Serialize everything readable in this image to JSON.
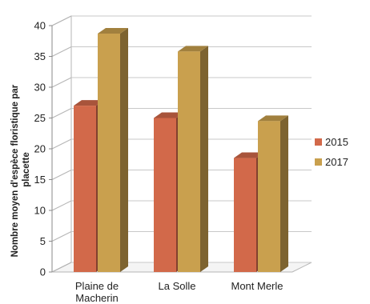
{
  "chart_data": {
    "type": "bar",
    "variant": "3d-clustered",
    "categories": [
      "Plaine de Macherin",
      "La Solle",
      "Mont Merle"
    ],
    "category_lines": [
      [
        "Plaine de",
        "Macherin"
      ],
      [
        "La Solle"
      ],
      [
        "Mont Merle"
      ]
    ],
    "series": [
      {
        "name": "2015",
        "values": [
          27,
          25,
          18.5
        ],
        "color": "#D2694A"
      },
      {
        "name": "2017",
        "values": [
          38.7,
          35.8,
          24.5
        ],
        "color": "#C9A04E"
      }
    ],
    "title": "",
    "xlabel": "",
    "ylabel": "Nombre moyen d'espèce floristique par placette",
    "ylabel_lines": [
      "Nombre moyen d'espèce floristique par",
      "placette"
    ],
    "ylim": [
      0,
      40
    ],
    "yticks": [
      "0",
      "5",
      "10",
      "15",
      "20",
      "25",
      "30",
      "35",
      "40"
    ],
    "grid": true,
    "legend_position": "right"
  }
}
